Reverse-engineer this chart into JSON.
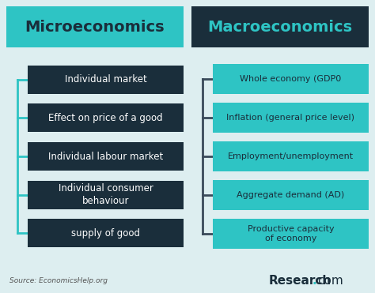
{
  "title_left": "Microeconomics",
  "title_right": "Macroeconomics",
  "left_items": [
    "Individual market",
    "Effect on price of a good",
    "Individual labour market",
    "Individual consumer\nbehaviour",
    "supply of good"
  ],
  "right_items": [
    "Whole economy (GDP0",
    "Inflation (general price level)",
    "Employment/unemployment",
    "Aggregate demand (AD)",
    "Productive capacity\nof economy"
  ],
  "bg_color": "#ddeef0",
  "title_left_bg": "#2ec4c4",
  "title_right_bg": "#1a2e3b",
  "left_box_bg": "#1a2e3b",
  "right_box_bg": "#2ec4c4",
  "title_left_text_color": "#1a2e3b",
  "title_right_text_color": "#2ec4c4",
  "left_box_text_color": "#ffffff",
  "right_box_text_color": "#1a2e3b",
  "connector_color": "#2ec4c4",
  "connector_color_right": "#3a4a5a",
  "source_text": "Source: EconomicsHelp.org",
  "brand_text_main": "Research",
  "brand_text_dot": ".",
  "brand_text_com": "com",
  "fig_width": 4.74,
  "fig_height": 3.71,
  "dpi": 100
}
